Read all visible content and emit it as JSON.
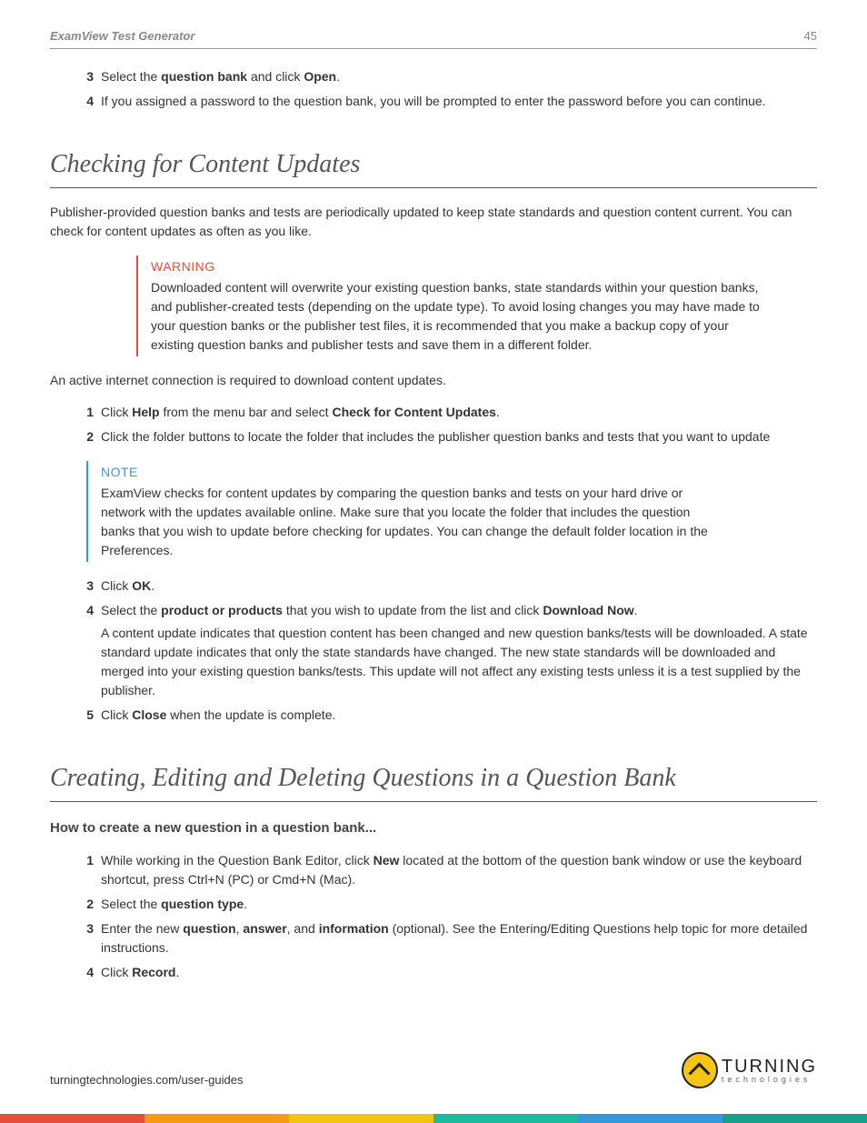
{
  "header": {
    "title": "ExamView Test Generator",
    "page": "45"
  },
  "top_steps": [
    {
      "n": "3",
      "parts": [
        "Select the ",
        {
          "b": "question bank"
        },
        " and click ",
        {
          "b": "Open"
        },
        "."
      ]
    },
    {
      "n": "4",
      "parts": [
        "If you assigned a password to the question bank, you will be prompted to enter the password before you can continue."
      ]
    }
  ],
  "section1": {
    "title": "Checking for Content Updates",
    "intro": "Publisher-provided question banks and tests are periodically updated to keep state standards and question content current. You can check for content updates as often as you like.",
    "warning": {
      "label": "WARNING",
      "text": "Downloaded content will overwrite your existing question banks, state standards within your question banks, and publisher-created tests (depending on the update type). To avoid losing changes you may have made to your question banks or the publisher test files, it is recommended that you make a backup copy of your existing question banks and publisher tests and save them in a different folder."
    },
    "after_warning": "An active internet connection is required to download content updates.",
    "steps_a": [
      {
        "n": "1",
        "parts": [
          "Click ",
          {
            "b": "Help"
          },
          " from the menu bar and select ",
          {
            "b": "Check for Content Updates"
          },
          "."
        ]
      },
      {
        "n": "2",
        "parts": [
          "Click the folder buttons to locate the folder that includes the publisher question banks and tests that you want to update"
        ]
      }
    ],
    "note": {
      "label": "NOTE",
      "text": "ExamView checks for content updates by comparing the question banks and tests on your hard drive or network with the updates available online. Make sure that you locate the folder that includes the question banks that you wish to update before checking for updates. You can change the default folder location in the Preferences."
    },
    "steps_b": [
      {
        "n": "3",
        "parts": [
          "Click ",
          {
            "b": "OK"
          },
          "."
        ]
      },
      {
        "n": "4",
        "parts": [
          "Select the ",
          {
            "b": "product or products"
          },
          " that you wish to update from the list and click ",
          {
            "b": "Download Now"
          },
          "."
        ],
        "sub": "A content update indicates that question content has been changed and new question banks/tests will be downloaded. A state standard update indicates that only the state standards have changed. The new state standards will be downloaded and merged into your existing question banks/tests. This update will not affect any existing tests unless it is a test supplied by the publisher."
      },
      {
        "n": "5",
        "parts": [
          "Click ",
          {
            "b": "Close"
          },
          " when the update is complete."
        ]
      }
    ]
  },
  "section2": {
    "title": "Creating, Editing and Deleting Questions in a Question Bank",
    "subhead": "How to create a new question in a question bank...",
    "steps": [
      {
        "n": "1",
        "parts": [
          "While working in the Question Bank Editor, click ",
          {
            "b": "New"
          },
          " located at the bottom of the question bank window or use the keyboard shortcut, press Ctrl+N (PC) or Cmd+N (Mac)."
        ]
      },
      {
        "n": "2",
        "parts": [
          "Select the ",
          {
            "b": "question type"
          },
          "."
        ]
      },
      {
        "n": "3",
        "parts": [
          "Enter the new ",
          {
            "b": "question"
          },
          ", ",
          {
            "b": "answer"
          },
          ", and ",
          {
            "b": "information"
          },
          " (optional). See the Entering/Editing Questions help topic for more detailed instructions."
        ]
      },
      {
        "n": "4",
        "parts": [
          "Click ",
          {
            "b": "Record"
          },
          "."
        ]
      }
    ]
  },
  "footer": {
    "url": "turningtechnologies.com/user-guides",
    "logo_main": "TURNING",
    "logo_sub": "technologies"
  },
  "stripe_colors": [
    "#e74c3c",
    "#f39c12",
    "#f1c40f",
    "#1abc9c",
    "#3498db",
    "#16a085"
  ]
}
